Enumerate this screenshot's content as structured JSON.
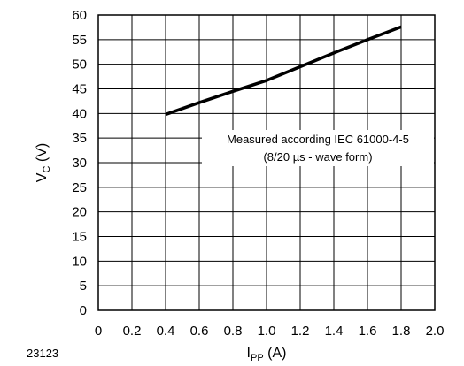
{
  "figure_id": "23123",
  "chart_data": {
    "type": "line",
    "xlabel": {
      "main": "I",
      "sub": "PP",
      "unit": " (A)"
    },
    "ylabel": {
      "main": "V",
      "sub": "C",
      "unit": " (V)"
    },
    "xlim": [
      0,
      2.0
    ],
    "ylim": [
      0,
      60
    ],
    "xticks": [
      "0",
      "0.2",
      "0.4",
      "0.6",
      "0.8",
      "1.0",
      "1.2",
      "1.4",
      "1.6",
      "1.8",
      "2.0"
    ],
    "yticks": [
      "0",
      "5",
      "10",
      "15",
      "20",
      "25",
      "30",
      "35",
      "40",
      "45",
      "50",
      "55",
      "60"
    ],
    "grid": true,
    "series": [
      {
        "x": [
          0.4,
          0.6,
          0.8,
          1.0,
          1.2,
          1.4,
          1.6,
          1.8
        ],
        "values": [
          39.8,
          42.2,
          44.5,
          46.7,
          49.5,
          52.3,
          55.0,
          57.6
        ]
      }
    ],
    "annotations": [
      "Measured according IEC 61000-4-5",
      "(8/20 µs - wave form)"
    ]
  },
  "colors": {
    "line": "#000000",
    "grid": "#000000",
    "background": "#ffffff"
  }
}
